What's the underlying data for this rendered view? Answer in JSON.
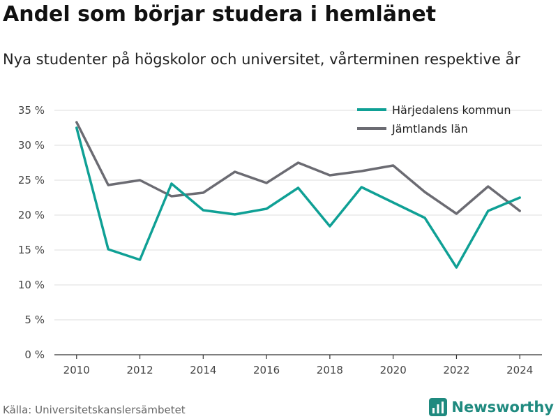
{
  "header": {
    "title": "Andel som börjar studera i hemlänet",
    "subtitle": "Nya studenter på högskolor och universitet, vårterminen respektive år"
  },
  "footer": {
    "source": "Källa: Universitetskanslersämbetet",
    "brand": "Newsworthy",
    "brand_icon": "newsworthy-logo-icon"
  },
  "colors": {
    "harjedalen": "#0fa095",
    "jamtland": "#6b6b72",
    "brand": "#1f8a7f"
  },
  "chart_data": {
    "type": "line",
    "x": [
      2010,
      2011,
      2012,
      2013,
      2014,
      2015,
      2016,
      2017,
      2018,
      2019,
      2020,
      2021,
      2022,
      2023,
      2024
    ],
    "series": [
      {
        "name": "Härjedalens kommun",
        "color": "#0fa095",
        "values": [
          32.5,
          15.1,
          13.6,
          24.5,
          20.7,
          20.1,
          20.9,
          23.9,
          18.4,
          24.0,
          21.8,
          19.6,
          12.5,
          20.6,
          22.5
        ]
      },
      {
        "name": "Jämtlands län",
        "color": "#6b6b72",
        "values": [
          33.3,
          24.3,
          25.0,
          22.7,
          23.2,
          26.2,
          24.6,
          27.5,
          25.7,
          26.3,
          27.1,
          23.3,
          20.2,
          24.1,
          20.6
        ]
      }
    ],
    "xticks": [
      2010,
      2012,
      2014,
      2016,
      2018,
      2020,
      2022,
      2024
    ],
    "yticks": [
      0,
      5,
      10,
      15,
      20,
      25,
      30,
      35
    ],
    "ytick_labels": [
      "0 %",
      "5 %",
      "10 %",
      "15 %",
      "20 %",
      "25 %",
      "30 %",
      "35 %"
    ],
    "xlim": [
      2009.3,
      2024.7
    ],
    "ylim": [
      0,
      35
    ],
    "grid": "horizontal",
    "legend_position": "top-right"
  }
}
